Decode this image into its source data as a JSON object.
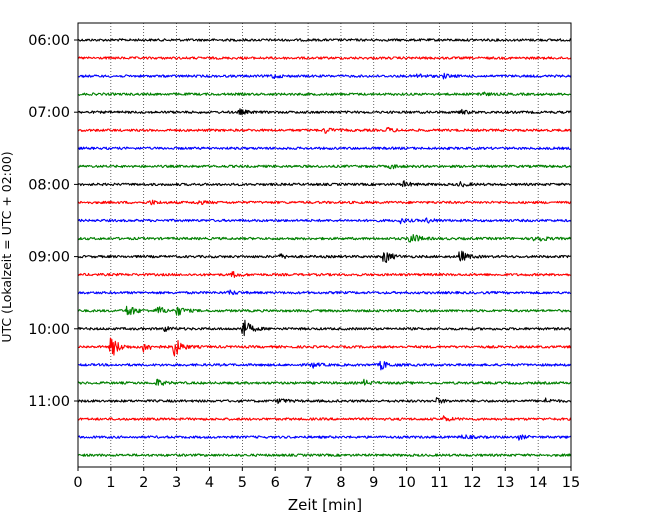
{
  "chart_data": {
    "type": "line",
    "title": "",
    "xlabel": "Zeit  [min]",
    "ylabel": "UTC (Lokalzeit = UTC + 02:00)",
    "xlim": [
      0,
      15
    ],
    "x_ticks": [
      "0",
      "1",
      "2",
      "3",
      "4",
      "5",
      "6",
      "7",
      "8",
      "9",
      "10",
      "11",
      "12",
      "13",
      "14",
      "15"
    ],
    "y_tick_labels": [
      "06:00",
      "07:00",
      "08:00",
      "09:00",
      "10:00",
      "11:00"
    ],
    "grid": "vertical dotted lines at each minute",
    "trace_interval_minutes": 15,
    "trace_colors": [
      "#000000",
      "#ff0000",
      "#0000ff",
      "#008000"
    ],
    "traces": [
      {
        "start": "06:00",
        "events": []
      },
      {
        "start": "06:15",
        "events": []
      },
      {
        "start": "06:30",
        "events": [
          {
            "t": 5.9,
            "amp": 1.1
          },
          {
            "t": 10.3,
            "amp": 1.2
          },
          {
            "t": 11.1,
            "amp": 1.0
          }
        ]
      },
      {
        "start": "06:45",
        "events": [
          {
            "t": 12.2,
            "amp": 1.1
          }
        ]
      },
      {
        "start": "07:00",
        "events": [
          {
            "t": 4.9,
            "amp": 1.3
          },
          {
            "t": 11.6,
            "amp": 1.2
          }
        ]
      },
      {
        "start": "07:15",
        "events": [
          {
            "t": 7.5,
            "amp": 1.4
          },
          {
            "t": 9.4,
            "amp": 1.1
          }
        ]
      },
      {
        "start": "07:30",
        "events": []
      },
      {
        "start": "07:45",
        "events": [
          {
            "t": 9.5,
            "amp": 1.0
          }
        ]
      },
      {
        "start": "08:00",
        "events": [
          {
            "t": 9.9,
            "amp": 1.3
          },
          {
            "t": 11.6,
            "amp": 1.1
          }
        ]
      },
      {
        "start": "08:15",
        "events": [
          {
            "t": 2.2,
            "amp": 1.0
          },
          {
            "t": 3.6,
            "amp": 1.0
          }
        ]
      },
      {
        "start": "08:30",
        "events": [
          {
            "t": 9.8,
            "amp": 1.0
          },
          {
            "t": 10.6,
            "amp": 1.1
          }
        ]
      },
      {
        "start": "08:45",
        "events": [
          {
            "t": 10.1,
            "amp": 3.5
          },
          {
            "t": 13.9,
            "amp": 2.6
          }
        ]
      },
      {
        "start": "09:00",
        "events": [
          {
            "t": 9.3,
            "amp": 3.6
          },
          {
            "t": 11.6,
            "amp": 3.2
          },
          {
            "t": 6.1,
            "amp": 1.2
          }
        ]
      },
      {
        "start": "09:15",
        "events": [
          {
            "t": 4.7,
            "amp": 1.3
          }
        ]
      },
      {
        "start": "09:30",
        "events": [
          {
            "t": 4.6,
            "amp": 1.1
          }
        ]
      },
      {
        "start": "09:45",
        "events": [
          {
            "t": 1.5,
            "amp": 3.3
          },
          {
            "t": 2.4,
            "amp": 2.4
          },
          {
            "t": 3.0,
            "amp": 2.4
          }
        ]
      },
      {
        "start": "10:00",
        "events": [
          {
            "t": 5.0,
            "amp": 5.5
          },
          {
            "t": 2.6,
            "amp": 1.2
          }
        ]
      },
      {
        "start": "10:15",
        "events": [
          {
            "t": 1.0,
            "amp": 5.8
          },
          {
            "t": 2.9,
            "amp": 5.5
          },
          {
            "t": 2.0,
            "amp": 2.4
          }
        ]
      },
      {
        "start": "10:30",
        "events": [
          {
            "t": 9.2,
            "amp": 2.4
          },
          {
            "t": 7.1,
            "amp": 1.3
          }
        ]
      },
      {
        "start": "10:45",
        "events": [
          {
            "t": 2.4,
            "amp": 1.6
          },
          {
            "t": 8.7,
            "amp": 1.2
          }
        ]
      },
      {
        "start": "11:00",
        "events": [
          {
            "t": 6.1,
            "amp": 1.3
          },
          {
            "t": 10.9,
            "amp": 1.2
          },
          {
            "t": 14.2,
            "amp": 1.1
          }
        ]
      },
      {
        "start": "11:15",
        "events": [
          {
            "t": 11.1,
            "amp": 1.2
          }
        ]
      },
      {
        "start": "11:30",
        "events": [
          {
            "t": 11.7,
            "amp": 1.1
          },
          {
            "t": 13.4,
            "amp": 1.0
          }
        ]
      },
      {
        "start": "11:45",
        "events": []
      }
    ]
  }
}
